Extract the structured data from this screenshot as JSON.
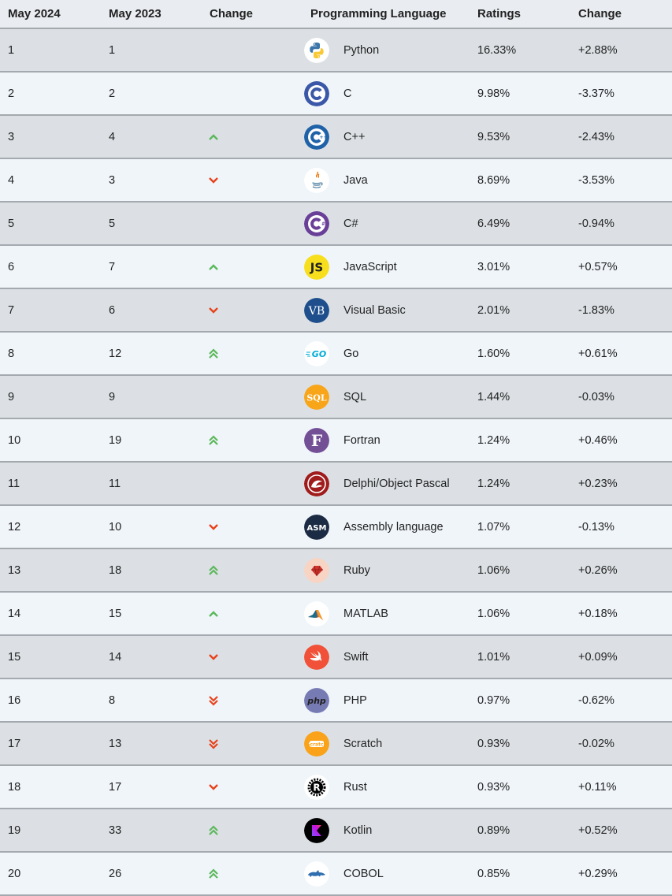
{
  "headers": {
    "current": "May 2024",
    "previous": "May 2023",
    "change": "Change",
    "language": "Programming Language",
    "ratings": "Ratings",
    "change_pct": "Change"
  },
  "colors": {
    "up": "#5cb85c",
    "down": "#e8431c"
  },
  "rows": [
    {
      "rank": "1",
      "prev": "1",
      "trend": "none",
      "icon": "python-logo-icon",
      "language": "Python",
      "rating": "16.33%",
      "change": "+2.88%"
    },
    {
      "rank": "2",
      "prev": "2",
      "trend": "none",
      "icon": "c-logo-icon",
      "language": "C",
      "rating": "9.98%",
      "change": "-3.37%"
    },
    {
      "rank": "3",
      "prev": "4",
      "trend": "up",
      "icon": "cpp-logo-icon",
      "language": "C++",
      "rating": "9.53%",
      "change": "-2.43%"
    },
    {
      "rank": "4",
      "prev": "3",
      "trend": "down",
      "icon": "java-logo-icon",
      "language": "Java",
      "rating": "8.69%",
      "change": "-3.53%"
    },
    {
      "rank": "5",
      "prev": "5",
      "trend": "none",
      "icon": "csharp-logo-icon",
      "language": "C#",
      "rating": "6.49%",
      "change": "-0.94%"
    },
    {
      "rank": "6",
      "prev": "7",
      "trend": "up",
      "icon": "javascript-logo-icon",
      "language": "JavaScript",
      "rating": "3.01%",
      "change": "+0.57%"
    },
    {
      "rank": "7",
      "prev": "6",
      "trend": "down",
      "icon": "visual-basic-logo-icon",
      "language": "Visual Basic",
      "rating": "2.01%",
      "change": "-1.83%"
    },
    {
      "rank": "8",
      "prev": "12",
      "trend": "up2",
      "icon": "go-logo-icon",
      "language": "Go",
      "rating": "1.60%",
      "change": "+0.61%"
    },
    {
      "rank": "9",
      "prev": "9",
      "trend": "none",
      "icon": "sql-logo-icon",
      "language": "SQL",
      "rating": "1.44%",
      "change": "-0.03%"
    },
    {
      "rank": "10",
      "prev": "19",
      "trend": "up2",
      "icon": "fortran-logo-icon",
      "language": "Fortran",
      "rating": "1.24%",
      "change": "+0.46%"
    },
    {
      "rank": "11",
      "prev": "11",
      "trend": "none",
      "icon": "delphi-logo-icon",
      "language": "Delphi/Object Pascal",
      "rating": "1.24%",
      "change": "+0.23%"
    },
    {
      "rank": "12",
      "prev": "10",
      "trend": "down",
      "icon": "assembly-logo-icon",
      "language": "Assembly language",
      "rating": "1.07%",
      "change": "-0.13%"
    },
    {
      "rank": "13",
      "prev": "18",
      "trend": "up2",
      "icon": "ruby-logo-icon",
      "language": "Ruby",
      "rating": "1.06%",
      "change": "+0.26%"
    },
    {
      "rank": "14",
      "prev": "15",
      "trend": "up",
      "icon": "matlab-logo-icon",
      "language": "MATLAB",
      "rating": "1.06%",
      "change": "+0.18%"
    },
    {
      "rank": "15",
      "prev": "14",
      "trend": "down",
      "icon": "swift-logo-icon",
      "language": "Swift",
      "rating": "1.01%",
      "change": "+0.09%"
    },
    {
      "rank": "16",
      "prev": "8",
      "trend": "down2",
      "icon": "php-logo-icon",
      "language": "PHP",
      "rating": "0.97%",
      "change": "-0.62%"
    },
    {
      "rank": "17",
      "prev": "13",
      "trend": "down2",
      "icon": "scratch-logo-icon",
      "language": "Scratch",
      "rating": "0.93%",
      "change": "-0.02%"
    },
    {
      "rank": "18",
      "prev": "17",
      "trend": "down",
      "icon": "rust-logo-icon",
      "language": "Rust",
      "rating": "0.93%",
      "change": "+0.11%"
    },
    {
      "rank": "19",
      "prev": "33",
      "trend": "up2",
      "icon": "kotlin-logo-icon",
      "language": "Kotlin",
      "rating": "0.89%",
      "change": "+0.52%"
    },
    {
      "rank": "20",
      "prev": "26",
      "trend": "up2",
      "icon": "cobol-logo-icon",
      "language": "COBOL",
      "rating": "0.85%",
      "change": "+0.29%"
    }
  ]
}
